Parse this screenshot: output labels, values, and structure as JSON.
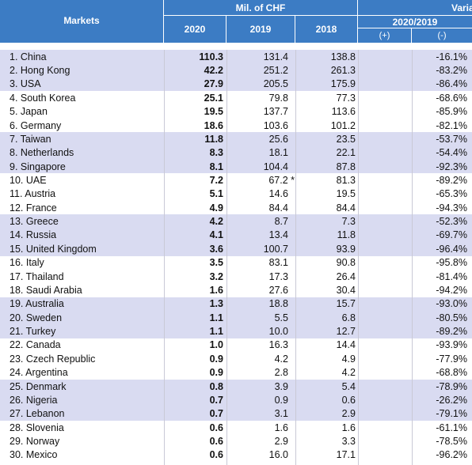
{
  "header": {
    "markets": "Markets",
    "unit": "Mil. of CHF",
    "years": [
      "2020",
      "2019",
      "2018"
    ],
    "variance": "Varia",
    "period": "2020/2019",
    "plus": "(+)",
    "minus": "(-)"
  },
  "table": {
    "rows": [
      [
        "1. China",
        "110.3",
        "131.4",
        "138.8",
        "-16.1%"
      ],
      [
        "2. Hong Kong",
        "42.2",
        "251.2",
        "261.3",
        "-83.2%"
      ],
      [
        "3. USA",
        "27.9",
        "205.5",
        "175.9",
        "-86.4%"
      ],
      [
        "4. South Korea",
        "25.1",
        "79.8",
        "77.3",
        "-68.6%"
      ],
      [
        "5. Japan",
        "19.5",
        "137.7",
        "113.6",
        "-85.9%"
      ],
      [
        "6. Germany",
        "18.6",
        "103.6",
        "101.2",
        "-82.1%"
      ],
      [
        "7. Taiwan",
        "11.8",
        "25.6",
        "23.5",
        "-53.7%"
      ],
      [
        "8. Netherlands",
        "8.3",
        "18.1",
        "22.1",
        "-54.4%"
      ],
      [
        "9. Singapore",
        "8.1",
        "104.4",
        "87.8",
        "-92.3%"
      ],
      [
        "10. UAE",
        "7.2",
        "67.2 *",
        "81.3",
        "-89.2%"
      ],
      [
        "11. Austria",
        "5.1",
        "14.6",
        "19.5",
        "-65.3%"
      ],
      [
        "12. France",
        "4.9",
        "84.4",
        "84.4",
        "-94.3%"
      ],
      [
        "13. Greece",
        "4.2",
        "8.7",
        "7.3",
        "-52.3%"
      ],
      [
        "14. Russia",
        "4.1",
        "13.4",
        "11.8",
        "-69.7%"
      ],
      [
        "15. United Kingdom",
        "3.6",
        "100.7",
        "93.9",
        "-96.4%"
      ],
      [
        "16. Italy",
        "3.5",
        "83.1",
        "90.8",
        "-95.8%"
      ],
      [
        "17. Thailand",
        "3.2",
        "17.3",
        "26.4",
        "-81.4%"
      ],
      [
        "18. Saudi Arabia",
        "1.6",
        "27.6",
        "30.4",
        "-94.2%"
      ],
      [
        "19. Australia",
        "1.3",
        "18.8",
        "15.7",
        "-93.0%"
      ],
      [
        "20. Sweden",
        "1.1",
        "5.5",
        "6.8",
        "-80.5%"
      ],
      [
        "21. Turkey",
        "1.1",
        "10.0",
        "12.7",
        "-89.2%"
      ],
      [
        "22. Canada",
        "1.0",
        "16.3",
        "14.4",
        "-93.9%"
      ],
      [
        "23. Czech Republic",
        "0.9",
        "4.2",
        "4.9",
        "-77.9%"
      ],
      [
        "24. Argentina",
        "0.9",
        "2.8",
        "4.2",
        "-68.8%"
      ],
      [
        "25. Denmark",
        "0.8",
        "3.9",
        "5.4",
        "-78.9%"
      ],
      [
        "26. Nigeria",
        "0.7",
        "0.9",
        "0.6",
        "-26.2%"
      ],
      [
        "27. Lebanon",
        "0.7",
        "3.1",
        "2.9",
        "-79.1%"
      ],
      [
        "28. Slovenia",
        "0.6",
        "1.6",
        "1.6",
        "-61.1%"
      ],
      [
        "29. Norway",
        "0.6",
        "2.9",
        "3.3",
        "-78.5%"
      ],
      [
        "30. Mexico",
        "0.6",
        "16.0",
        "17.1",
        "-96.2%"
      ]
    ]
  }
}
